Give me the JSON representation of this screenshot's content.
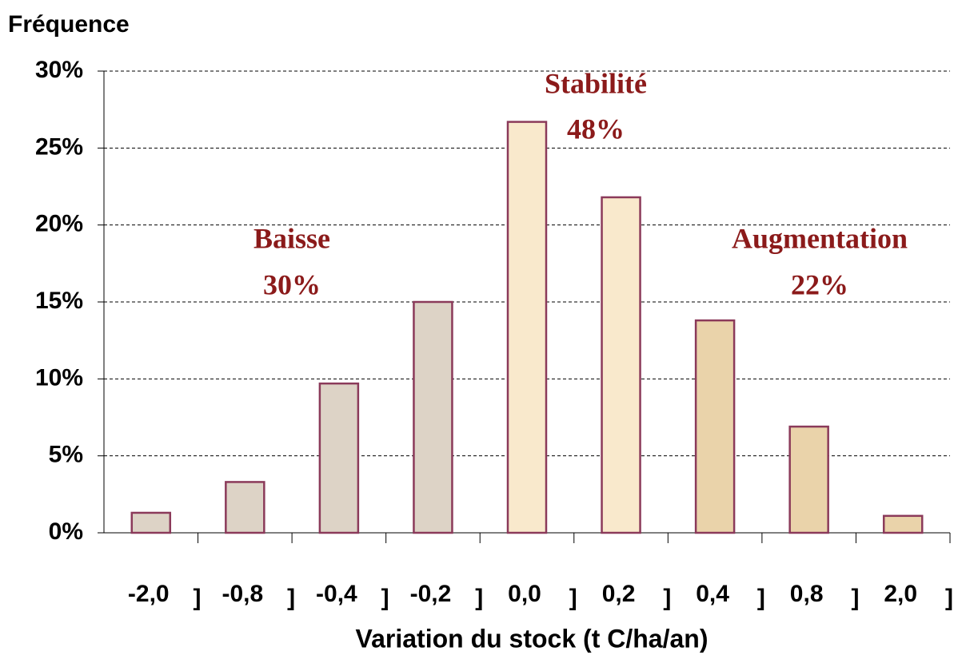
{
  "chart_data": {
    "type": "bar",
    "ylabel": "Fréquence",
    "xlabel": "Variation du stock (t C/ha/an)",
    "categories": [
      "-2,0",
      "-0,8",
      "-0,4",
      "-0,2",
      "0,0",
      "0,2",
      "0,4",
      "0,8",
      "2,0"
    ],
    "bracket_labels": [
      "]",
      "]",
      "]",
      "]",
      "]",
      "]",
      "]",
      "]",
      "]"
    ],
    "values": [
      1.3,
      3.3,
      9.7,
      15,
      26.7,
      21.8,
      13.8,
      6.9,
      1.1
    ],
    "colors": [
      "#ddd3c6",
      "#ddd3c6",
      "#ddd3c6",
      "#ddd3c6",
      "#f9e9cc",
      "#f9e9cc",
      "#ead3aa",
      "#ead3aa",
      "#ead3aa"
    ],
    "edge_color": "#8b3a5a",
    "ylim": [
      0,
      30
    ],
    "yticks": [
      {
        "value": 0,
        "label": "0%"
      },
      {
        "value": 5,
        "label": "5%"
      },
      {
        "value": 10,
        "label": "10%"
      },
      {
        "value": 15,
        "label": "15%"
      },
      {
        "value": 20,
        "label": "20%"
      },
      {
        "value": 25,
        "label": "25%"
      },
      {
        "value": 30,
        "label": "30%"
      }
    ],
    "grid": true,
    "annotations": [
      {
        "text": "Baisse",
        "value_label": "30%"
      },
      {
        "text": "Stabilité",
        "value_label": "48%"
      },
      {
        "text": "Augmentation",
        "value_label": "22%"
      }
    ]
  }
}
